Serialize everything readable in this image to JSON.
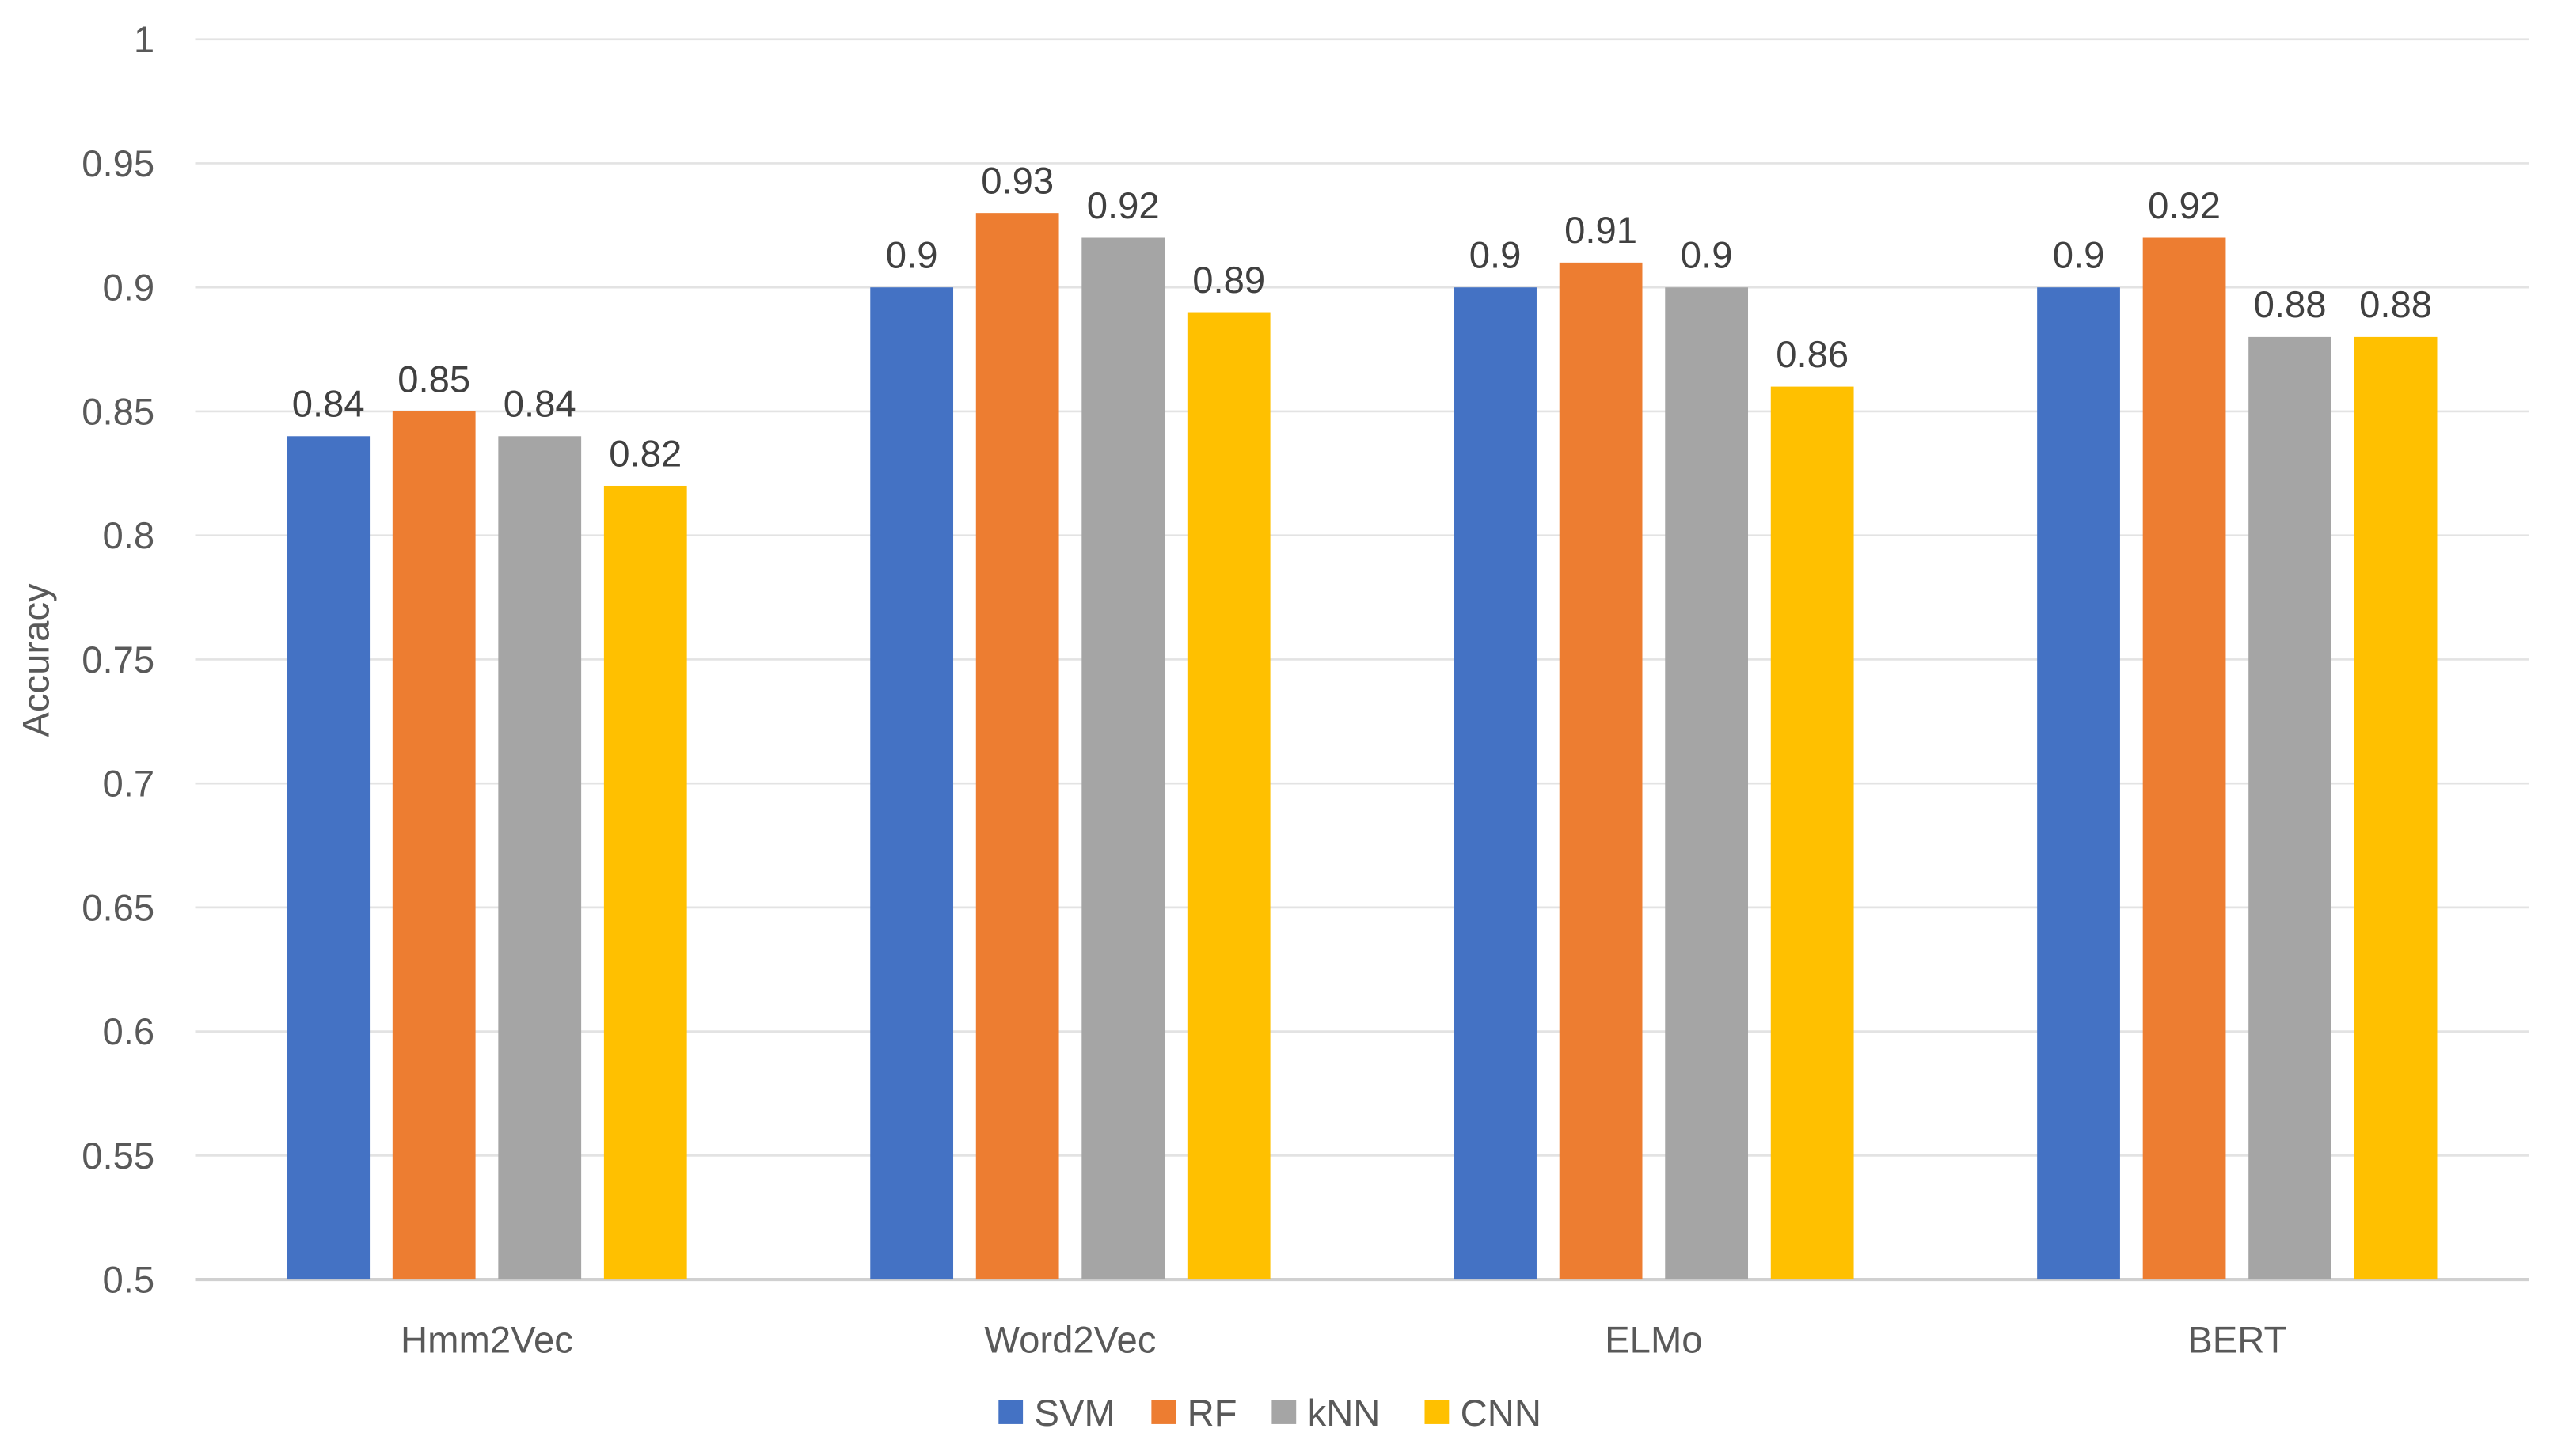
{
  "chart_data": {
    "type": "bar",
    "title": "",
    "xlabel": "",
    "ylabel": "Accuracy",
    "ylim": [
      0.5,
      1
    ],
    "yticks": [
      0.5,
      0.55,
      0.6,
      0.65,
      0.7,
      0.75,
      0.8,
      0.85,
      0.9,
      0.95,
      1
    ],
    "grid": true,
    "legend_position": "bottom",
    "categories": [
      "Hmm2Vec",
      "Word2Vec",
      "ELMo",
      "BERT"
    ],
    "series": [
      {
        "name": "SVM",
        "color": "#4472C4",
        "values": [
          0.84,
          0.9,
          0.9,
          0.9
        ]
      },
      {
        "name": "RF",
        "color": "#ED7D31",
        "values": [
          0.85,
          0.93,
          0.91,
          0.92
        ]
      },
      {
        "name": "kNN",
        "color": "#A5A5A5",
        "values": [
          0.84,
          0.92,
          0.9,
          0.88
        ]
      },
      {
        "name": "CNN",
        "color": "#FFC000",
        "values": [
          0.82,
          0.89,
          0.86,
          0.88
        ]
      }
    ]
  }
}
